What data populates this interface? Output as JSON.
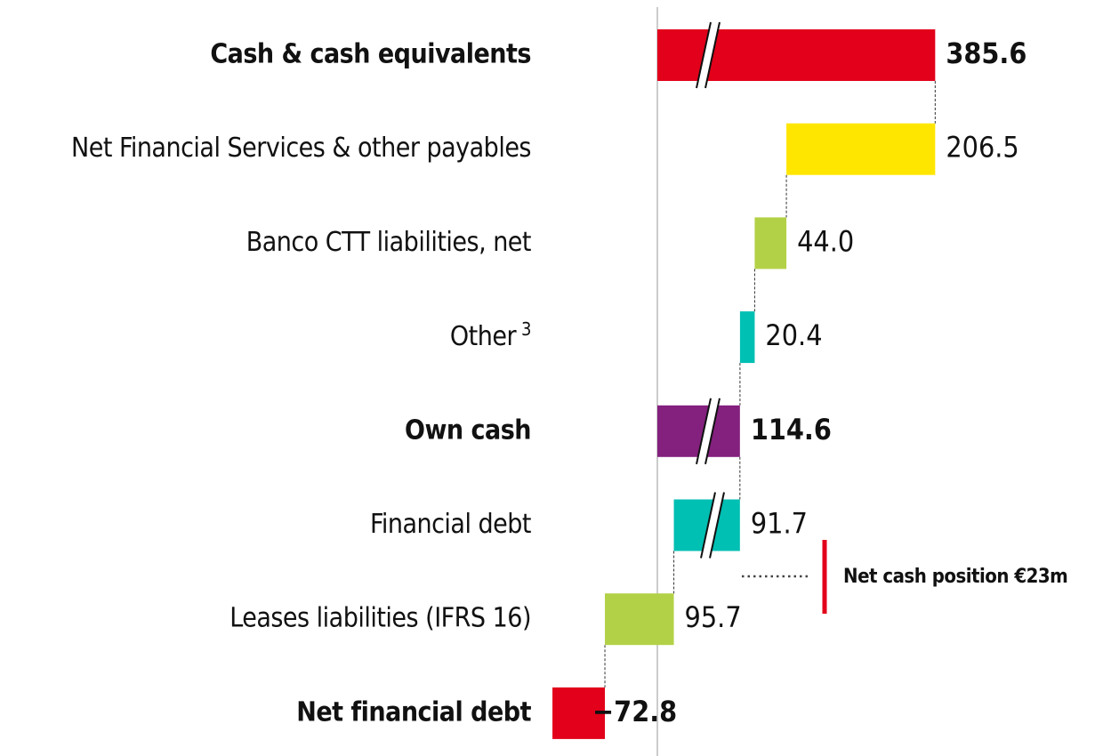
{
  "chart_data": {
    "type": "waterfall",
    "categories": [
      "Cash & cash equivalents",
      "Net Financial Services & other payables",
      "Banco CTT liabilities, net",
      "Other",
      "Own cash",
      "Financial debt",
      "Leases liabilities (IFRS 16)",
      "Net financial debt"
    ],
    "category_notes": [
      null,
      null,
      null,
      "3",
      null,
      null,
      null,
      null
    ],
    "measure": [
      "total",
      "decrease",
      "decrease",
      "decrease",
      "total",
      "decrease",
      "decrease",
      "total"
    ],
    "values": [
      385.6,
      206.5,
      44.0,
      20.4,
      114.6,
      91.7,
      95.7,
      -72.8
    ],
    "value_labels": [
      "385.6",
      "206.5",
      "44.0",
      "20.4",
      "114.6",
      "91.7",
      "95.7",
      "−72.8"
    ],
    "colors": [
      "#e2001a",
      "#ffe600",
      "#b3d147",
      "#00bfb3",
      "#84207e",
      "#00bfb3",
      "#b3d147",
      "#e2001a"
    ],
    "broken": [
      true,
      false,
      false,
      false,
      true,
      true,
      false,
      false
    ],
    "xlim": [
      -100,
      400
    ],
    "annotation": "Net cash position €23m"
  }
}
